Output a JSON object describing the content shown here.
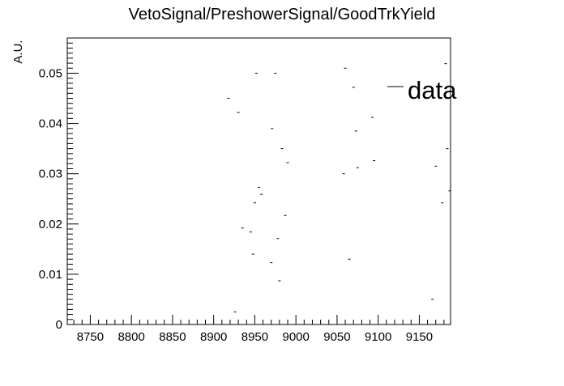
{
  "chart_data": {
    "type": "scatter",
    "title": "VetoSignal/PreshowerSignal/GoodTrkYield",
    "xlabel": "",
    "ylabel": "A.U.",
    "xlim": [
      8722,
      9188
    ],
    "ylim": [
      0,
      0.057
    ],
    "x_ticks": [
      8750,
      8800,
      8850,
      8900,
      8950,
      9000,
      9050,
      9100,
      9150
    ],
    "x_tick_labels": [
      "8750",
      "8800",
      "8850",
      "8900",
      "8950",
      "9000",
      "9050",
      "9100",
      "9150"
    ],
    "y_ticks": [
      0,
      0.01,
      0.02,
      0.03,
      0.04,
      0.05
    ],
    "y_tick_labels": [
      "0",
      "0.01",
      "0.02",
      "0.03",
      "0.04",
      "0.05"
    ],
    "grid": false,
    "legend": {
      "position": "top-right",
      "entries": [
        {
          "label": "data",
          "marker": "line"
        }
      ]
    },
    "series": [
      {
        "name": "data",
        "points": [
          {
            "x": 8918,
            "y": 0.045
          },
          {
            "x": 8926,
            "y": 0.0025
          },
          {
            "x": 8930,
            "y": 0.0422
          },
          {
            "x": 8935,
            "y": 0.0192
          },
          {
            "x": 8945,
            "y": 0.0184
          },
          {
            "x": 8948,
            "y": 0.014
          },
          {
            "x": 8950,
            "y": 0.0242
          },
          {
            "x": 8952,
            "y": 0.05
          },
          {
            "x": 8955,
            "y": 0.0273
          },
          {
            "x": 8958,
            "y": 0.0259
          },
          {
            "x": 8970,
            "y": 0.0123
          },
          {
            "x": 8971,
            "y": 0.039
          },
          {
            "x": 8975,
            "y": 0.05
          },
          {
            "x": 8978,
            "y": 0.0171
          },
          {
            "x": 8980,
            "y": 0.0087
          },
          {
            "x": 8983,
            "y": 0.035
          },
          {
            "x": 8987,
            "y": 0.0217
          },
          {
            "x": 8990,
            "y": 0.0322
          },
          {
            "x": 9058,
            "y": 0.03
          },
          {
            "x": 9060,
            "y": 0.051
          },
          {
            "x": 9065,
            "y": 0.013
          },
          {
            "x": 9070,
            "y": 0.0472
          },
          {
            "x": 9073,
            "y": 0.0385
          },
          {
            "x": 9075,
            "y": 0.0312
          },
          {
            "x": 9093,
            "y": 0.0412
          },
          {
            "x": 9095,
            "y": 0.0326
          },
          {
            "x": 9166,
            "y": 0.005
          },
          {
            "x": 9170,
            "y": 0.0315
          },
          {
            "x": 9178,
            "y": 0.0242
          },
          {
            "x": 9182,
            "y": 0.0519
          },
          {
            "x": 9184,
            "y": 0.035
          },
          {
            "x": 9187,
            "y": 0.0266
          }
        ]
      }
    ]
  }
}
